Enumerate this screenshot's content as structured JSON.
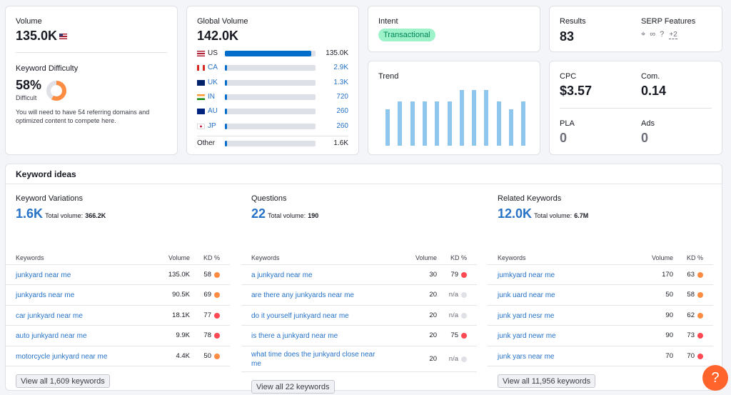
{
  "volume": {
    "label": "Volume",
    "value": "135.0K",
    "flag": "US"
  },
  "kd": {
    "label": "Keyword Difficulty",
    "value": "58%",
    "level": "Difficult",
    "percent": 58,
    "note": "You will need to have 54 referring domains and optimized content to compete here."
  },
  "global": {
    "label": "Global Volume",
    "value": "142.0K",
    "countries": [
      {
        "code": "US",
        "value": "135.0K",
        "share": 0.95
      },
      {
        "code": "CA",
        "value": "2.9K",
        "share": 0.02
      },
      {
        "code": "UK",
        "value": "1.3K",
        "share": 0.01
      },
      {
        "code": "IN",
        "value": "720",
        "share": 0.01
      },
      {
        "code": "AU",
        "value": "260",
        "share": 0.01
      },
      {
        "code": "JP",
        "value": "260",
        "share": 0.01
      }
    ],
    "other": {
      "label": "Other",
      "value": "1.6K",
      "share": 0.01
    }
  },
  "intent": {
    "label": "Intent",
    "value": "Transactional"
  },
  "results": {
    "label": "Results",
    "value": "83"
  },
  "serp": {
    "label": "SERP Features",
    "more": "+2"
  },
  "trend": {
    "label": "Trend",
    "values": [
      0.66,
      0.8,
      0.8,
      0.8,
      0.8,
      0.8,
      1.0,
      1.0,
      1.0,
      0.8,
      0.66,
      0.8
    ]
  },
  "cpc": {
    "label": "CPC",
    "value": "$3.57"
  },
  "com": {
    "label": "Com.",
    "value": "0.14"
  },
  "pla": {
    "label": "PLA",
    "value": "0"
  },
  "ads": {
    "label": "Ads",
    "value": "0"
  },
  "ideas": {
    "title": "Keyword ideas",
    "total_label": "Total volume:",
    "col_keywords": "Keywords",
    "col_volume": "Volume",
    "col_kd": "KD %",
    "na": "n/a",
    "variations": {
      "title": "Keyword Variations",
      "count": "1.6K",
      "total": "366.2K",
      "rows": [
        {
          "kw": "junkyard near me",
          "vol": "135.0K",
          "kd": "58",
          "color": "#ff8c43"
        },
        {
          "kw": "junkyards near me",
          "vol": "90.5K",
          "kd": "69",
          "color": "#ff8c43"
        },
        {
          "kw": "car junkyard near me",
          "vol": "18.1K",
          "kd": "77",
          "color": "#ff4953"
        },
        {
          "kw": "auto junkyard near me",
          "vol": "9.9K",
          "kd": "78",
          "color": "#ff4953"
        },
        {
          "kw": "motorcycle junkyard near me",
          "vol": "4.4K",
          "kd": "50",
          "color": "#ff8c43"
        }
      ],
      "button": "View all 1,609 keywords"
    },
    "questions": {
      "title": "Questions",
      "count": "22",
      "total": "190",
      "rows": [
        {
          "kw": "a junkyard near me",
          "vol": "30",
          "kd": "79",
          "color": "#ff4953"
        },
        {
          "kw": "are there any junkyards near me",
          "vol": "20",
          "kd": "n/a",
          "color": "#dfe1e6"
        },
        {
          "kw": "do it yourself junkyard near me",
          "vol": "20",
          "kd": "n/a",
          "color": "#dfe1e6"
        },
        {
          "kw": "is there a junkyard near me",
          "vol": "20",
          "kd": "75",
          "color": "#ff4953"
        },
        {
          "kw": "what time does the junkyard close near me",
          "vol": "20",
          "kd": "n/a",
          "color": "#dfe1e6"
        }
      ],
      "button": "View all 22 keywords"
    },
    "related": {
      "title": "Related Keywords",
      "count": "12.0K",
      "total": "6.7M",
      "rows": [
        {
          "kw": "jumkyard near me",
          "vol": "170",
          "kd": "63",
          "color": "#ff8c43"
        },
        {
          "kw": "junk uard near me",
          "vol": "50",
          "kd": "58",
          "color": "#ff8c43"
        },
        {
          "kw": "junk yard nesr me",
          "vol": "90",
          "kd": "62",
          "color": "#ff8c43"
        },
        {
          "kw": "junk yard newr me",
          "vol": "90",
          "kd": "73",
          "color": "#ff4953"
        },
        {
          "kw": "junk yars near me",
          "vol": "70",
          "kd": "70",
          "color": "#ff4953"
        }
      ],
      "button": "View all 11,956 keywords"
    }
  },
  "help": {
    "label": "?"
  }
}
